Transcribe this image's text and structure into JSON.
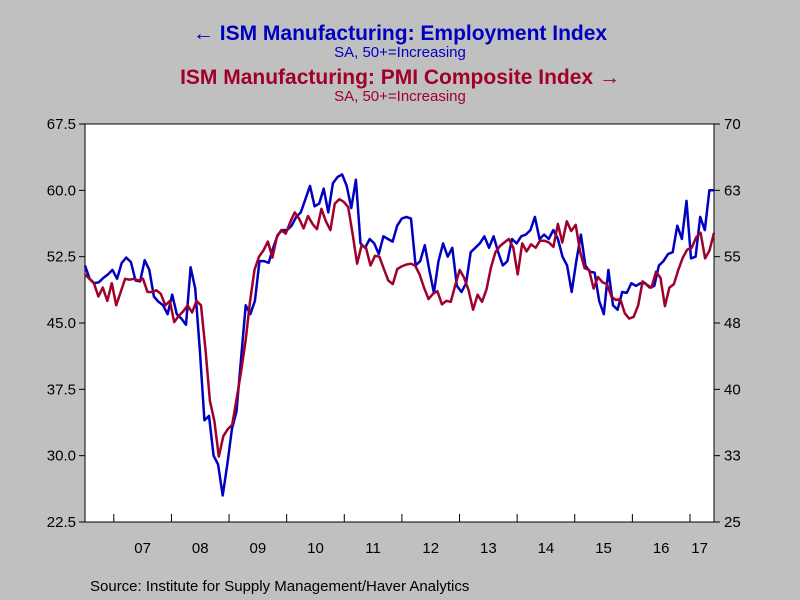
{
  "titles": {
    "employment": "ISM Manufacturing: Employment Index",
    "employment_sub": "SA, 50+=Increasing",
    "pmi": "ISM Manufacturing: PMI Composite Index",
    "pmi_sub": "SA, 50+=Increasing"
  },
  "source": "Source:  Institute for Supply Management/Haver Analytics",
  "colors": {
    "employment": "#0000c0",
    "pmi": "#a0002a",
    "plot_bg": "#ffffff",
    "page_bg": "#c0c0c0"
  },
  "chart_data": {
    "type": "line",
    "x_start": "2006-07",
    "x_end": "2017-06",
    "x_tick_labels": [
      "07",
      "08",
      "09",
      "10",
      "11",
      "12",
      "13",
      "14",
      "15",
      "16",
      "17"
    ],
    "left_axis": {
      "ylim": [
        22.5,
        67.5
      ],
      "ticks": [
        "67.5",
        "60.0",
        "52.5",
        "45.0",
        "37.5",
        "30.0",
        "22.5"
      ]
    },
    "right_axis": {
      "ylim": [
        25,
        70
      ],
      "ticks": [
        "70",
        "63",
        "55",
        "48",
        "40",
        "33",
        "25"
      ]
    },
    "series": [
      {
        "name": "ISM Manufacturing: Employment Index",
        "axis": "left",
        "values": [
          51.5,
          50.0,
          49.5,
          49.6,
          50.1,
          50.5,
          51.0,
          50.0,
          51.8,
          52.4,
          51.9,
          49.8,
          49.7,
          52.1,
          51.0,
          48.0,
          47.4,
          47.0,
          46.0,
          48.2,
          46.0,
          45.5,
          44.8,
          51.3,
          48.9,
          42.0,
          34.0,
          34.5,
          30.0,
          29.0,
          25.5,
          29.0,
          33.0,
          35.0,
          41.0,
          47.0,
          46.0,
          47.5,
          52.0,
          52.0,
          51.8,
          53.5,
          55.0,
          55.5,
          55.5,
          56.0,
          57.0,
          57.5,
          59.0,
          60.5,
          58.2,
          58.5,
          60.2,
          57.5,
          60.8,
          61.5,
          61.8,
          60.5,
          58.0,
          61.2,
          54.0,
          53.5,
          54.5,
          54.0,
          52.8,
          54.8,
          54.5,
          54.2,
          56.0,
          56.8,
          57.0,
          56.8,
          51.5,
          52.0,
          53.8,
          51.0,
          48.4,
          52.0,
          54.0,
          52.5,
          53.5,
          49.2,
          48.5,
          49.5,
          53.0,
          53.5,
          54.0,
          54.8,
          53.5,
          54.8,
          53.0,
          51.5,
          52.0,
          54.5,
          54.0,
          54.8,
          55.0,
          55.5,
          57.0,
          54.5,
          55.0,
          54.5,
          55.5,
          54.5,
          52.5,
          51.5,
          48.5,
          52.0,
          55.0,
          51.5,
          50.8,
          50.7,
          47.5,
          46.0,
          51.0,
          47.0,
          46.5,
          48.5,
          48.4,
          49.5,
          49.2,
          49.5,
          49.5,
          49.0,
          49.2,
          51.5,
          52.0,
          52.8,
          53.0,
          56.0,
          54.5,
          58.8,
          52.3,
          52.5,
          57.0,
          55.5,
          60.0,
          60.0
        ]
      },
      {
        "name": "ISM Manufacturing: PMI Composite Index",
        "axis": "right",
        "values": [
          53.0,
          52.5,
          52.0,
          50.5,
          51.5,
          50.0,
          52.0,
          49.5,
          51.0,
          52.5,
          52.4,
          52.5,
          52.3,
          52.5,
          51.0,
          51.0,
          51.2,
          50.8,
          49.5,
          50.0,
          47.6,
          48.3,
          48.8,
          49.5,
          48.7,
          50.0,
          49.5,
          44.6,
          38.7,
          36.4,
          32.4,
          34.7,
          35.5,
          36.0,
          39.0,
          42.0,
          45.5,
          50.0,
          53.5,
          55.0,
          55.7,
          56.7,
          54.9,
          57.2,
          58.0,
          57.6,
          58.9,
          60.0,
          59.3,
          58.2,
          59.6,
          58.7,
          58.1,
          60.4,
          59.0,
          58.0,
          61.0,
          61.5,
          61.2,
          60.6,
          57.5,
          54.2,
          56.3,
          56.0,
          54.0,
          55.1,
          55.0,
          53.6,
          52.3,
          51.9,
          53.6,
          53.9,
          54.1,
          54.2,
          54.0,
          53.0,
          51.5,
          50.2,
          50.8,
          51.1,
          49.6,
          50.0,
          49.9,
          51.8,
          53.5,
          52.6,
          51.2,
          49.0,
          50.7,
          49.9,
          51.3,
          53.8,
          55.5,
          56.2,
          56.6,
          57.0,
          56.0,
          53.0,
          56.5,
          55.6,
          56.4,
          56.0,
          56.8,
          56.8,
          56.6,
          56.1,
          58.7,
          56.6,
          59.0,
          57.9,
          58.6,
          55.5,
          53.7,
          53.5,
          51.4,
          52.7,
          52.1,
          51.9,
          50.5,
          50.1,
          50.2,
          48.6,
          48.0,
          48.2,
          49.5,
          52.2,
          51.8,
          51.5,
          53.3,
          52.6,
          49.4,
          51.5,
          51.9,
          53.5,
          54.9,
          55.8,
          56.0,
          57.2,
          57.7,
          54.8,
          55.7,
          57.7
        ]
      }
    ]
  }
}
